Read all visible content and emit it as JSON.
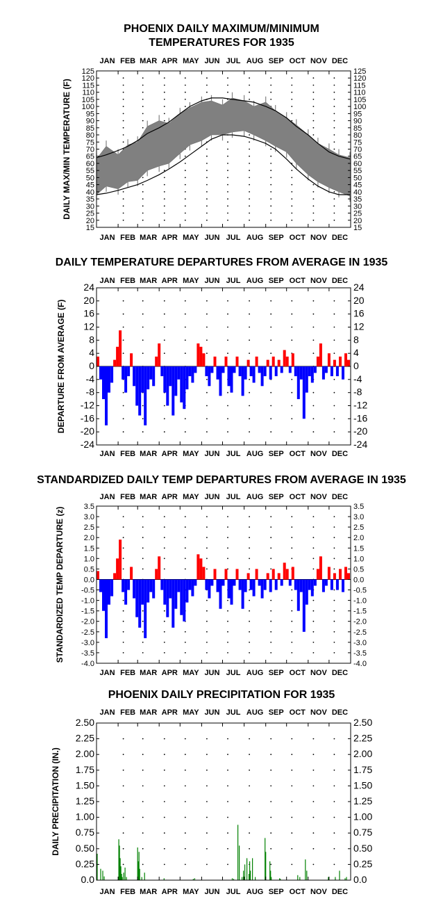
{
  "chart_data": [
    {
      "type": "line",
      "title": "PHOENIX DAILY MAXIMUM/MINIMUM",
      "subtitle": "TEMPERATURES FOR 1935",
      "ylabel": "DAILY MAX/MIN TEMPERATURE (F)",
      "xlabel": "",
      "months": [
        "JAN",
        "FEB",
        "MAR",
        "APR",
        "MAY",
        "JUN",
        "JUL",
        "AUG",
        "SEP",
        "OCT",
        "NOV",
        "DEC"
      ],
      "ylim": [
        15,
        125
      ],
      "yticks": [
        "15",
        "20",
        "25",
        "30",
        "35",
        "40",
        "45",
        "50",
        "55",
        "60",
        "65",
        "70",
        "75",
        "80",
        "85",
        "90",
        "95",
        "100",
        "105",
        "110",
        "115",
        "120",
        "125"
      ],
      "grid": "dotted",
      "series": [
        {
          "name": "",
          "kind": "daily max/min range band",
          "color": "#808080",
          "x_day": [
            1,
            15,
            32,
            46,
            60,
            74,
            91,
            105,
            121,
            135,
            152,
            166,
            182,
            196,
            213,
            227,
            244,
            258,
            274,
            288,
            305,
            319,
            335,
            349,
            365
          ],
          "max": [
            63,
            72,
            66,
            73,
            75,
            86,
            90,
            88,
            95,
            99,
            103,
            104,
            101,
            106,
            104,
            100,
            103,
            97,
            92,
            87,
            80,
            74,
            70,
            66,
            64
          ],
          "min": [
            38,
            44,
            42,
            47,
            48,
            55,
            58,
            60,
            67,
            73,
            76,
            80,
            80,
            82,
            83,
            80,
            76,
            72,
            68,
            60,
            52,
            47,
            43,
            40,
            37
          ]
        },
        {
          "name": "",
          "kind": "average max",
          "color": "#000000",
          "x_day": [
            1,
            15,
            32,
            46,
            60,
            74,
            91,
            105,
            121,
            135,
            152,
            166,
            182,
            196,
            213,
            227,
            244,
            258,
            274,
            288,
            305,
            319,
            335,
            349,
            365
          ],
          "values": [
            64,
            66,
            69,
            72,
            76,
            81,
            85,
            89,
            95,
            100,
            104,
            106,
            106,
            105,
            104,
            103,
            100,
            97,
            92,
            86,
            80,
            74,
            68,
            65,
            63
          ]
        },
        {
          "name": "",
          "kind": "average min",
          "color": "#000000",
          "x_day": [
            1,
            15,
            32,
            46,
            60,
            74,
            91,
            105,
            121,
            135,
            152,
            166,
            182,
            196,
            213,
            227,
            244,
            258,
            274,
            288,
            305,
            319,
            335,
            349,
            365
          ],
          "values": [
            38,
            39,
            41,
            43,
            45,
            48,
            52,
            56,
            61,
            66,
            72,
            77,
            80,
            80,
            79,
            77,
            74,
            70,
            63,
            56,
            49,
            44,
            40,
            38,
            38
          ]
        }
      ]
    },
    {
      "type": "bar",
      "title": "DAILY TEMPERATURE DEPARTURES FROM AVERAGE IN 1935",
      "ylabel": "DEPARTURE FROM AVERAGE (F)",
      "xlabel": "",
      "months": [
        "JAN",
        "FEB",
        "MAR",
        "APR",
        "MAY",
        "JUN",
        "JUL",
        "AUG",
        "SEP",
        "OCT",
        "NOV",
        "DEC"
      ],
      "ylim": [
        -24,
        24
      ],
      "yticks": [
        "24",
        "20",
        "16",
        "12",
        "8",
        "4",
        "0",
        "-4",
        "-8",
        "-12",
        "-16",
        "-20",
        "-24"
      ],
      "positive_color": "#ff0000",
      "negative_color": "#0000ff",
      "x_day": [
        1,
        5,
        9,
        13,
        17,
        21,
        25,
        29,
        33,
        37,
        41,
        45,
        49,
        53,
        57,
        61,
        65,
        69,
        73,
        77,
        81,
        85,
        89,
        93,
        97,
        101,
        105,
        109,
        113,
        117,
        121,
        125,
        129,
        133,
        137,
        141,
        145,
        149,
        153,
        157,
        161,
        165,
        169,
        173,
        177,
        181,
        185,
        189,
        193,
        197,
        201,
        205,
        209,
        213,
        217,
        221,
        225,
        229,
        233,
        237,
        241,
        245,
        249,
        253,
        257,
        261,
        265,
        269,
        273,
        277,
        281,
        285,
        289,
        293,
        297,
        301,
        305,
        309,
        313,
        317,
        321,
        325,
        329,
        333,
        337,
        341,
        345,
        349,
        353,
        357,
        361
      ],
      "values": [
        3,
        -4,
        -10,
        -18,
        -8,
        -5,
        2,
        6,
        11,
        -4,
        -8,
        -3,
        4,
        -6,
        -12,
        -15,
        -8,
        -18,
        -7,
        -4,
        -6,
        3,
        7,
        -3,
        -8,
        -12,
        -6,
        -15,
        -9,
        -4,
        -11,
        -13,
        -7,
        -3,
        -5,
        -2,
        7,
        6,
        4,
        -3,
        -6,
        -2,
        3,
        -4,
        -9,
        -2,
        3,
        -6,
        -8,
        -2,
        3,
        -3,
        -9,
        -4,
        2,
        -3,
        -5,
        3,
        -2,
        -6,
        -3,
        2,
        -4,
        3,
        -3,
        2,
        -2,
        5,
        3,
        -2,
        4,
        -3,
        -10,
        -4,
        -16,
        -8,
        -3,
        -5,
        -2,
        3,
        7,
        -4,
        -2,
        4,
        -3,
        2,
        -3,
        3,
        -4,
        4,
        2
      ]
    },
    {
      "type": "bar",
      "title": "STANDARDIZED DAILY TEMP DEPARTURES FROM AVERAGE IN 1935",
      "ylabel": "STANDARDIZED TEMP DEPARTURE (z)",
      "xlabel": "",
      "months": [
        "JAN",
        "FEB",
        "MAR",
        "APR",
        "MAY",
        "JUN",
        "JUL",
        "AUG",
        "SEP",
        "OCT",
        "NOV",
        "DEC"
      ],
      "ylim": [
        -4.0,
        3.5
      ],
      "yticks": [
        "3.5",
        "3.0",
        "2.5",
        "2.0",
        "1.5",
        "1.0",
        "0.5",
        "0.0",
        "-0.5",
        "-1.0",
        "-1.5",
        "-2.0",
        "-2.5",
        "-3.0",
        "-3.5",
        "-4.0"
      ],
      "positive_color": "#ff0000",
      "negative_color": "#0000ff",
      "x_day": [
        1,
        5,
        9,
        13,
        17,
        21,
        25,
        29,
        33,
        37,
        41,
        45,
        49,
        53,
        57,
        61,
        65,
        69,
        73,
        77,
        81,
        85,
        89,
        93,
        97,
        101,
        105,
        109,
        113,
        117,
        121,
        125,
        129,
        133,
        137,
        141,
        145,
        149,
        153,
        157,
        161,
        165,
        169,
        173,
        177,
        181,
        185,
        189,
        193,
        197,
        201,
        205,
        209,
        213,
        217,
        221,
        225,
        229,
        233,
        237,
        241,
        245,
        249,
        253,
        257,
        261,
        265,
        269,
        273,
        277,
        281,
        285,
        289,
        293,
        297,
        301,
        305,
        309,
        313,
        317,
        321,
        325,
        329,
        333,
        337,
        341,
        345,
        349,
        353,
        357,
        361
      ],
      "values": [
        0.4,
        -0.6,
        -1.5,
        -2.8,
        -1.2,
        -0.8,
        0.3,
        1.0,
        1.9,
        -0.6,
        -1.2,
        -0.5,
        0.6,
        -0.9,
        -1.8,
        -2.3,
        -1.2,
        -2.8,
        -1.1,
        -0.6,
        -0.9,
        0.5,
        1.1,
        -0.5,
        -1.2,
        -1.8,
        -0.9,
        -2.3,
        -1.4,
        -0.6,
        -1.7,
        -2.0,
        -1.1,
        -0.5,
        -0.8,
        -0.3,
        1.2,
        1.0,
        0.6,
        -0.5,
        -0.9,
        -0.3,
        0.5,
        -0.6,
        -1.4,
        -0.3,
        0.5,
        -0.9,
        -1.2,
        -0.3,
        0.5,
        -0.5,
        -1.4,
        -0.6,
        0.3,
        -0.5,
        -0.8,
        0.5,
        -0.3,
        -0.9,
        -0.5,
        0.3,
        -0.6,
        0.5,
        -0.5,
        0.3,
        -0.3,
        0.8,
        0.5,
        -0.3,
        0.6,
        -0.5,
        -1.5,
        -0.6,
        -2.5,
        -1.2,
        -0.5,
        -0.8,
        -0.3,
        0.5,
        1.1,
        -0.6,
        -0.3,
        0.6,
        -0.5,
        0.3,
        -0.5,
        0.5,
        -0.6,
        0.6,
        0.3
      ]
    },
    {
      "type": "bar",
      "title": "PHOENIX DAILY PRECIPITATION FOR 1935",
      "ylabel": "DAILY PRECIPITATION (IN.)",
      "xlabel": "",
      "months": [
        "JAN",
        "FEB",
        "MAR",
        "APR",
        "MAY",
        "JUN",
        "JUL",
        "AUG",
        "SEP",
        "OCT",
        "NOV",
        "DEC"
      ],
      "ylim": [
        0,
        2.5
      ],
      "yticks": [
        "2.50",
        "2.25",
        "2.00",
        "1.75",
        "1.50",
        "1.25",
        "1.00",
        "0.75",
        "0.50",
        "0.25",
        "0.0"
      ],
      "color": "#008000",
      "x_day": [
        2,
        7,
        10,
        12,
        33,
        34,
        35,
        36,
        37,
        38,
        40,
        42,
        44,
        60,
        61,
        62,
        63,
        66,
        70,
        98,
        140,
        142,
        196,
        198,
        204,
        206,
        210,
        212,
        214,
        217,
        220,
        221,
        222,
        225,
        229,
        243,
        244,
        250,
        251,
        252,
        264,
        265,
        290,
        293,
        301,
        303,
        334,
        344,
        350,
        358,
        360
      ],
      "values": [
        0.42,
        0.18,
        0.15,
        0.06,
        0.65,
        0.55,
        0.35,
        0.22,
        0.1,
        0.05,
        0.12,
        0.2,
        0.05,
        0.52,
        0.3,
        0.45,
        0.18,
        0.05,
        0.12,
        0.03,
        0.02,
        0.03,
        0.03,
        0.02,
        0.88,
        0.55,
        0.05,
        0.15,
        0.25,
        0.35,
        0.1,
        0.3,
        0.15,
        0.35,
        0.05,
        0.67,
        0.45,
        0.3,
        0.15,
        0.05,
        0.03,
        0.02,
        0.08,
        0.05,
        0.33,
        0.15,
        0.05,
        0.05,
        0.15,
        0.03,
        0.05
      ]
    }
  ]
}
